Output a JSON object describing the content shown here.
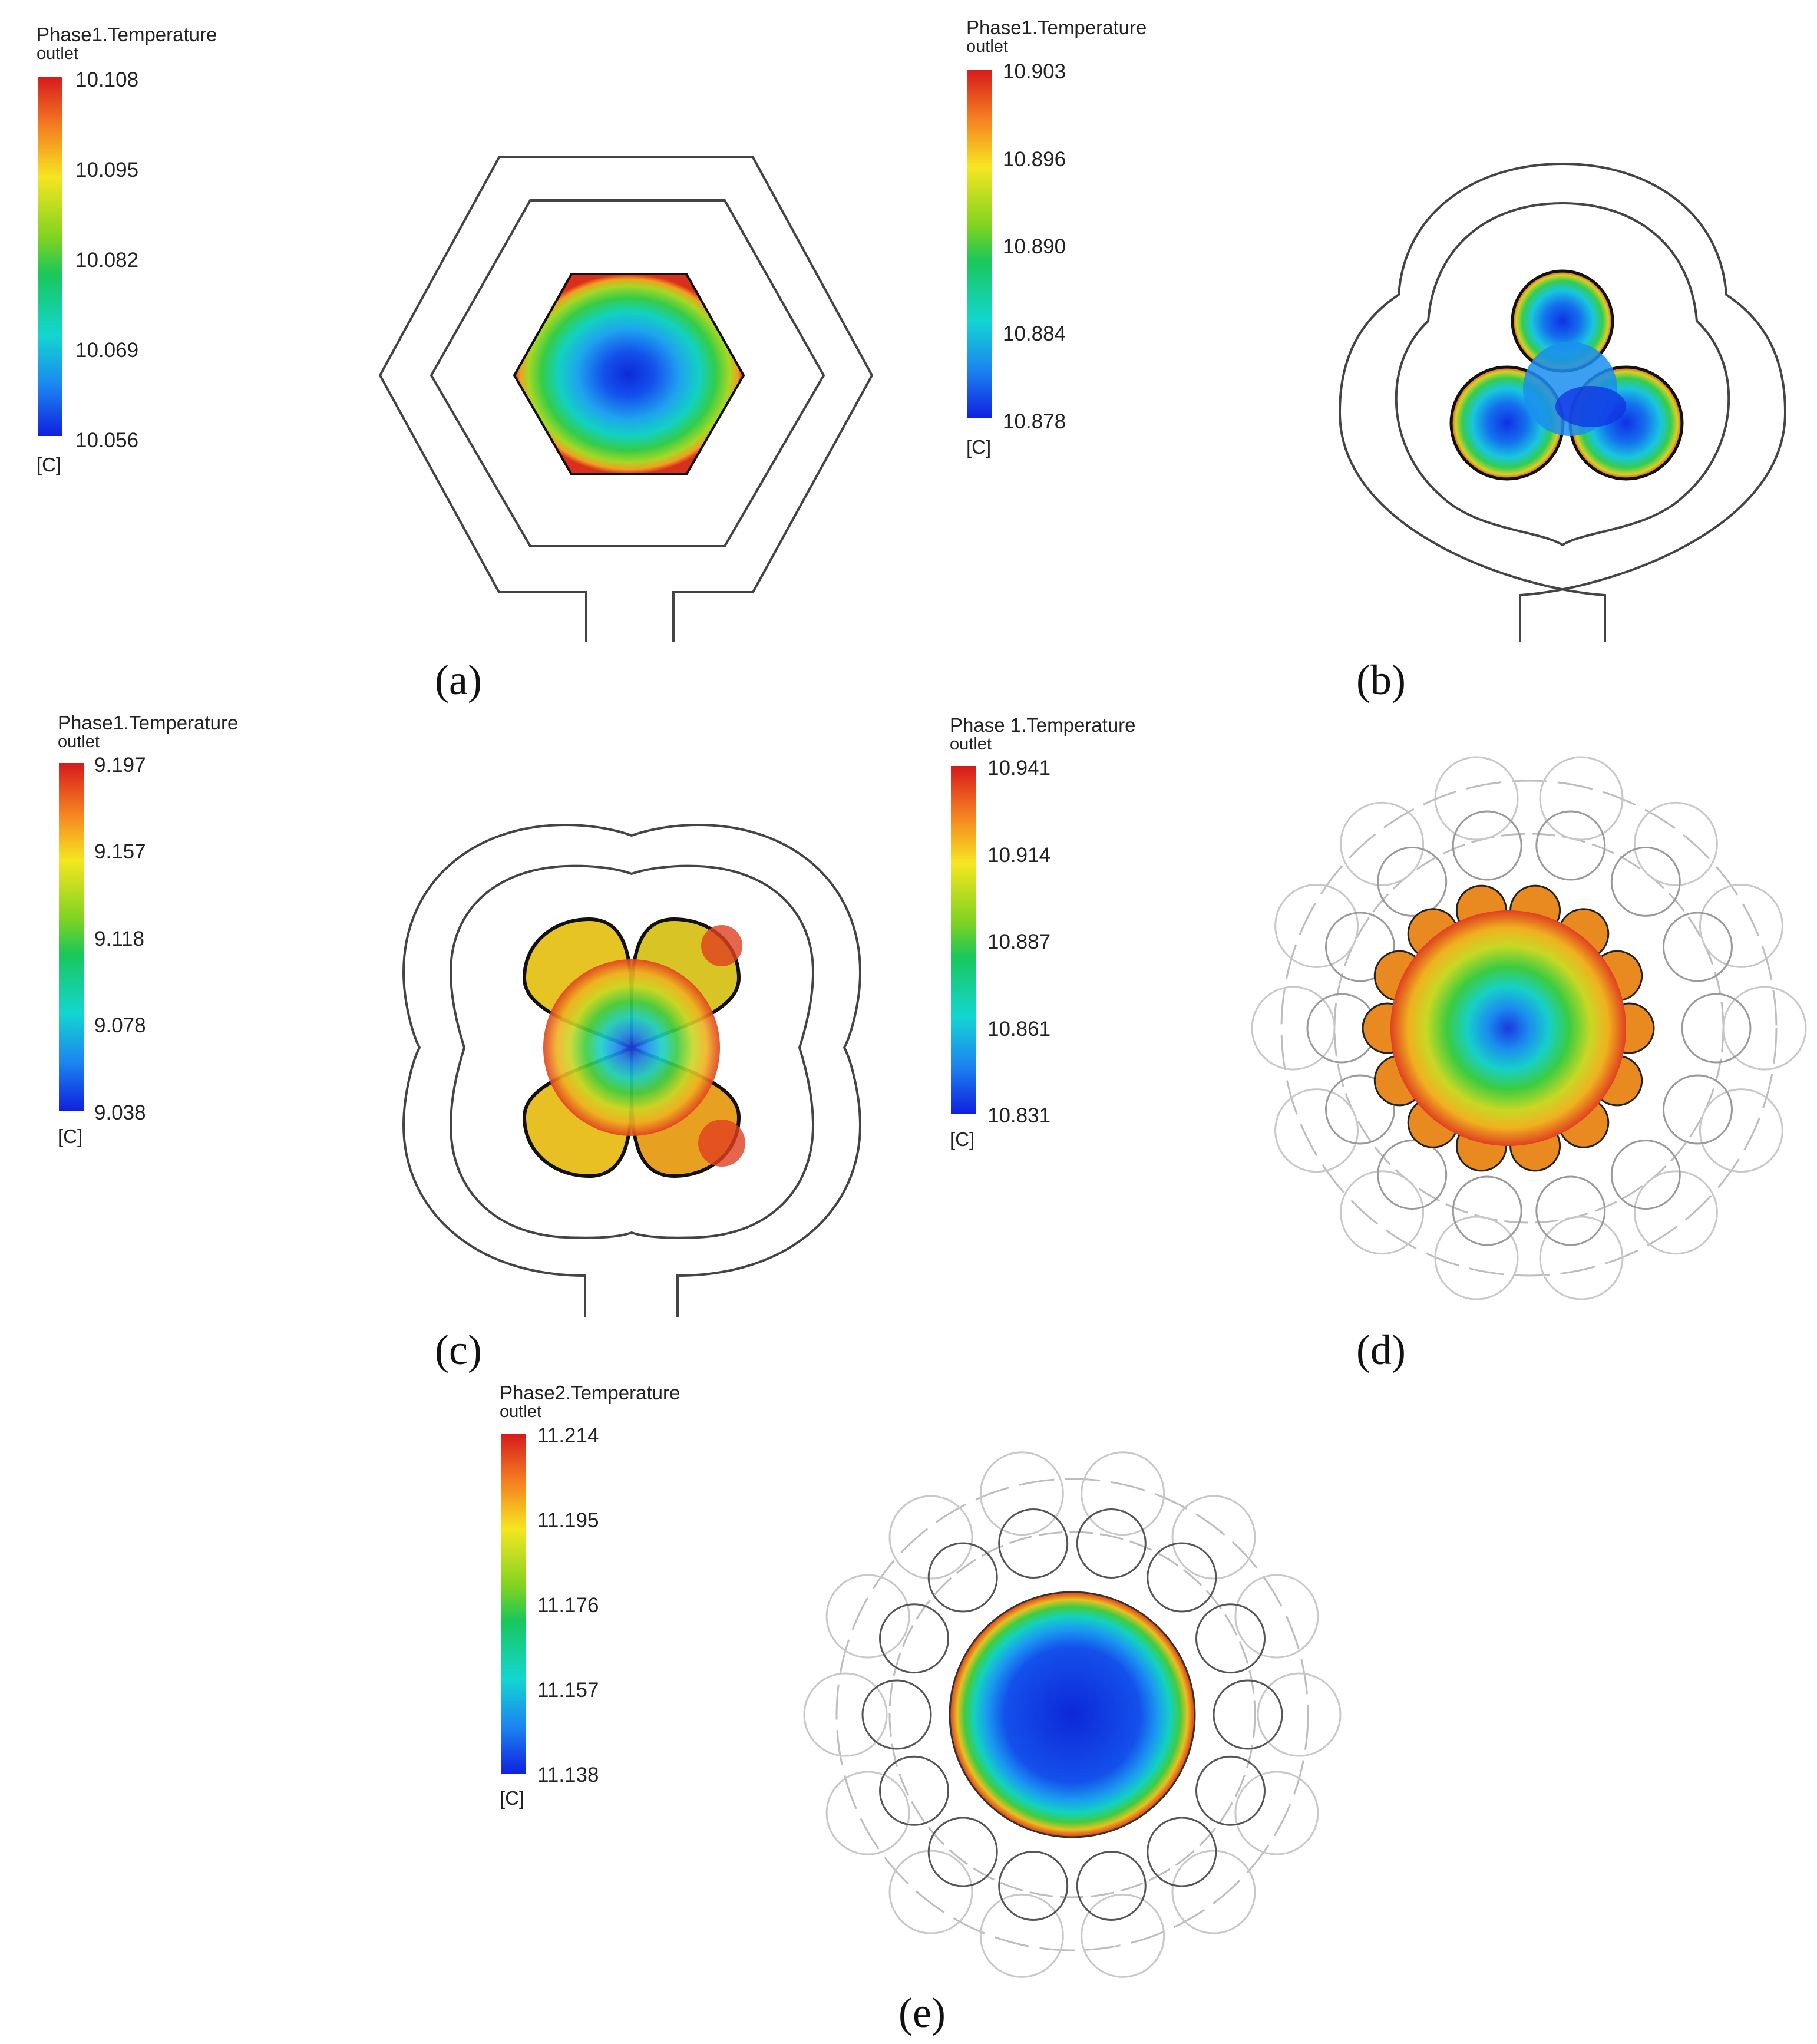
{
  "panels": [
    {
      "label": "(a)",
      "legend": {
        "title": "Phase1.Temperature",
        "subtitle": "outlet",
        "ticks": [
          "10.108",
          "10.095",
          "10.082",
          "10.069",
          "10.056"
        ],
        "unit": "[C]"
      }
    },
    {
      "label": "(b)",
      "legend": {
        "title": "Phase1.Temperature",
        "subtitle": "outlet",
        "ticks": [
          "10.903",
          "10.896",
          "10.890",
          "10.884",
          "10.878"
        ],
        "unit": "[C]"
      }
    },
    {
      "label": "(c)",
      "legend": {
        "title": "Phase1.Temperature",
        "subtitle": "outlet",
        "ticks": [
          "9.197",
          "9.157",
          "9.118",
          "9.078",
          "9.038"
        ],
        "unit": "[C]"
      }
    },
    {
      "label": "(d)",
      "legend": {
        "title": "Phase 1.Temperature",
        "subtitle": "outlet",
        "ticks": [
          "10.941",
          "10.914",
          "10.887",
          "10.861",
          "10.831"
        ],
        "unit": "[C]"
      }
    },
    {
      "label": "(e)",
      "legend": {
        "title": "Phase2.Temperature",
        "subtitle": "outlet",
        "ticks": [
          "11.214",
          "11.195",
          "11.176",
          "11.157",
          "11.138"
        ],
        "unit": "[C]"
      }
    }
  ],
  "colormap": [
    "#d7191c",
    "#f57f20",
    "#f5e620",
    "#7ed321",
    "#19c75a",
    "#12d6d0",
    "#1b86f0",
    "#1020e0"
  ]
}
